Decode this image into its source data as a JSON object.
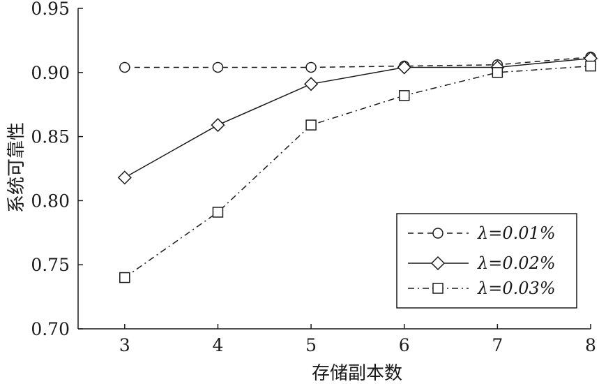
{
  "chart_data": {
    "type": "line",
    "xlabel": "存储副本数",
    "ylabel": "系统可靠性",
    "x": [
      3,
      4,
      5,
      6,
      7,
      8
    ],
    "xlim": [
      2.5,
      8
    ],
    "ylim": [
      0.7,
      0.95
    ],
    "x_ticks": [
      "3",
      "4",
      "5",
      "6",
      "7",
      "8"
    ],
    "y_ticks": [
      "0.70",
      "0.75",
      "0.80",
      "0.85",
      "0.90",
      "0.95"
    ],
    "grid": false,
    "legend_position": "bottom-right",
    "series": [
      {
        "name": "λ=0.01%",
        "marker": "circle",
        "line_style": "dashed",
        "values": [
          0.904,
          0.904,
          0.904,
          0.905,
          0.906,
          0.912
        ]
      },
      {
        "name": "λ=0.02%",
        "marker": "diamond",
        "line_style": "solid",
        "values": [
          0.818,
          0.859,
          0.891,
          0.904,
          0.904,
          0.911
        ]
      },
      {
        "name": "λ=0.03%",
        "marker": "square",
        "line_style": "dash-dot",
        "values": [
          0.74,
          0.791,
          0.859,
          0.882,
          0.9,
          0.905
        ]
      }
    ]
  }
}
